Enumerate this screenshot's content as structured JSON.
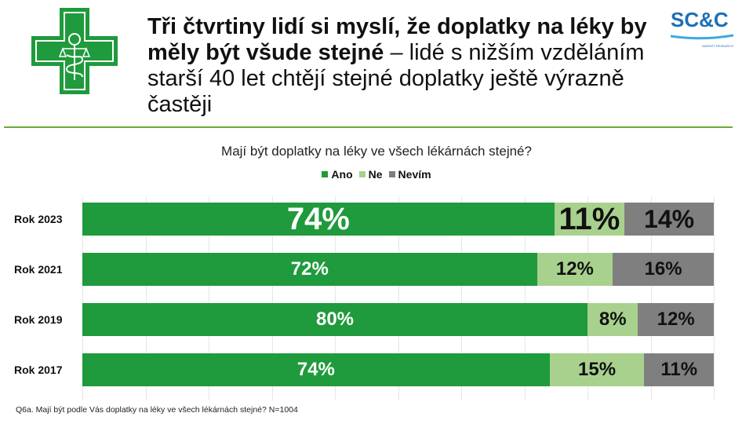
{
  "header": {
    "title_bold": "Tři čtvrtiny lidí si myslí, že doplatky na léky by měly být všude stejné",
    "title_rest": " – lidé s nižším vzděláním starší 40 let chtějí stejné doplatky ještě výrazně častěji",
    "brand": "SC&C",
    "brand_sub": "MARKET RESEARCH"
  },
  "colors": {
    "ano": "#1f9a3c",
    "ne": "#a9d18e",
    "nevim": "#7f7f7f"
  },
  "chart_data": {
    "type": "bar",
    "orientation": "horizontal",
    "stacked": true,
    "title": "Mají být doplatky na léky ve všech lékárnách stejné?",
    "legend": [
      "Ano",
      "Ne",
      "Nevím"
    ],
    "legend_position": "top",
    "categories": [
      "Rok 2023",
      "Rok 2021",
      "Rok 2019",
      "Rok 2017"
    ],
    "series": [
      {
        "name": "Ano",
        "values": [
          74,
          72,
          80,
          74
        ],
        "labels": [
          "74%",
          "72%",
          "80%",
          "74%"
        ]
      },
      {
        "name": "Ne",
        "values": [
          11,
          12,
          8,
          15
        ],
        "labels": [
          "11%",
          "12%",
          "8%",
          "15%"
        ]
      },
      {
        "name": "Nevím",
        "values": [
          14,
          16,
          12,
          11
        ],
        "labels": [
          "14%",
          "16%",
          "12%",
          "11%"
        ]
      }
    ],
    "xlim": [
      0,
      100
    ]
  },
  "footer": "Q6a. Mají být podle Vás doplatky na léky ve všech lékárnách stejné? N=1004"
}
